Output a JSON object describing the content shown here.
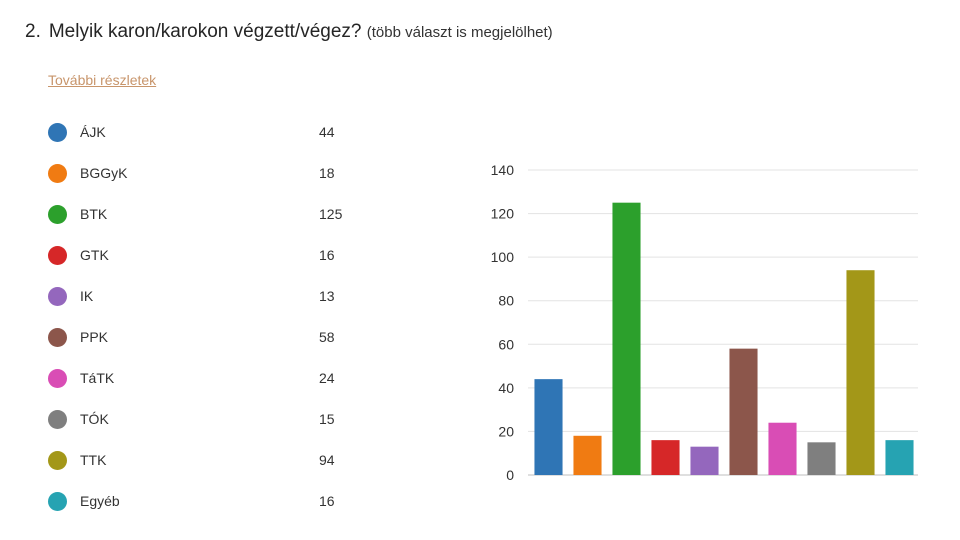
{
  "question": {
    "number": "2.",
    "text": "Melyik karon/karokon végzett/végez?",
    "hint": "(több választ is megjelölhet)"
  },
  "details_link": "További részletek",
  "legend": [
    {
      "label": "ÁJK",
      "value": "44",
      "color": "#2f75b5"
    },
    {
      "label": "BGGyK",
      "value": "18",
      "color": "#f07b12"
    },
    {
      "label": "BTK",
      "value": "125",
      "color": "#2ca02c"
    },
    {
      "label": "GTK",
      "value": "16",
      "color": "#d62728"
    },
    {
      "label": "IK",
      "value": "13",
      "color": "#9467bd"
    },
    {
      "label": "PPK",
      "value": "58",
      "color": "#8c564b"
    },
    {
      "label": "TáTK",
      "value": "24",
      "color": "#d94db5"
    },
    {
      "label": "TÓK",
      "value": "15",
      "color": "#7f7f7f"
    },
    {
      "label": "TTK",
      "value": "94",
      "color": "#a39718"
    },
    {
      "label": "Egyéb",
      "value": "16",
      "color": "#26a3b2"
    }
  ],
  "chart_data": {
    "type": "bar",
    "categories": [
      "ÁJK",
      "BGGyK",
      "BTK",
      "GTK",
      "IK",
      "PPK",
      "TáTK",
      "TÓK",
      "TTK",
      "Egyéb"
    ],
    "values": [
      44,
      18,
      125,
      16,
      13,
      58,
      24,
      15,
      94,
      16
    ],
    "colors": [
      "#2f75b5",
      "#f07b12",
      "#2ca02c",
      "#d62728",
      "#9467bd",
      "#8c564b",
      "#d94db5",
      "#7f7f7f",
      "#a39718",
      "#26a3b2"
    ],
    "ylim": [
      0,
      140
    ],
    "yticks": [
      "0",
      "20",
      "40",
      "60",
      "80",
      "100",
      "120",
      "140"
    ],
    "grid": true,
    "legend": "left"
  }
}
